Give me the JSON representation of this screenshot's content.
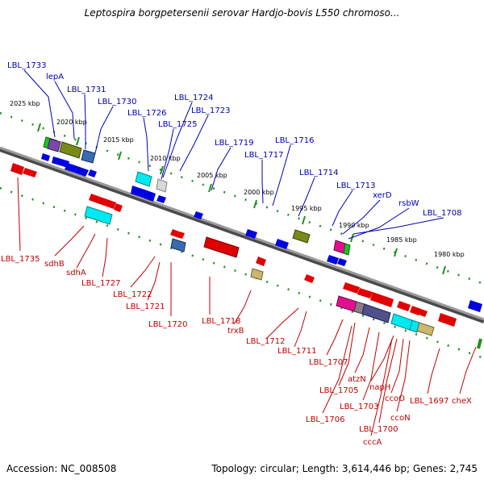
{
  "title": "Leptospira borgpetersenii serovar Hardjo-bovis L550 chromoso...",
  "footer": {
    "accession": "Accession: NC_008508",
    "topology": "Topology: circular; Length: 3,614,446 bp; Genes: 2,745"
  },
  "colors": {
    "backbone": "#8a8a8a",
    "tick": "#1f8f1f",
    "label_forward": "#0000b0",
    "label_reverse": "#c00000"
  },
  "tick_labels": [
    "2025 kbp",
    "2020 kbp",
    "2015 kbp",
    "2010 kbp",
    "2005 kbp",
    "2000 kbp",
    "1995 kbp",
    "1990 kbp",
    "1985 kbp",
    "1980 kbp"
  ],
  "gene_labels_forward": [
    "LBL_1733",
    "lepA",
    "LBL_1731",
    "LBL_1730",
    "LBL_1726",
    "LBL_1724",
    "LBL_1725",
    "LBL_1723",
    "LBL_1719",
    "LBL_1717",
    "LBL_1716",
    "LBL_1714",
    "LBL_1713",
    "xerD",
    "rsbW",
    "LBL_1708"
  ],
  "gene_labels_reverse": [
    "LBL_1735",
    "sdhB",
    "sdhA",
    "LBL_1727",
    "LBL_1722",
    "LBL_1721",
    "LBL_1720",
    "LBL_1718",
    "trxB",
    "LBL_1712",
    "LBL_1711",
    "LBL_1707",
    "atzN",
    "LBL_1705",
    "napH",
    "LBL_1703",
    "ccoO",
    "LBL_1706",
    "LBL_1700",
    "ccoN",
    "cccA",
    "LBL_1697",
    "cheX"
  ]
}
